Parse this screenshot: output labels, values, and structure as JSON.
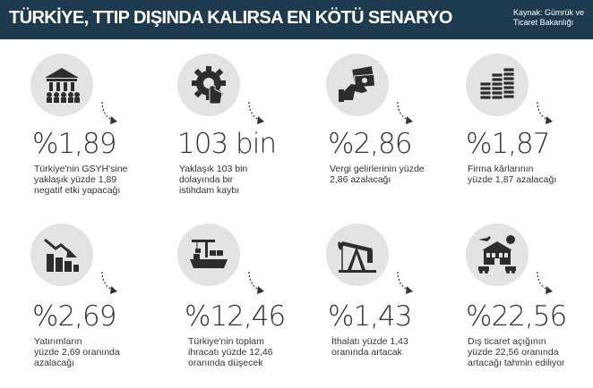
{
  "header": {
    "title": "TÜRKİYE, TTIP DIŞINDA KALIRSA EN KÖTÜ SENARYO",
    "source_line1": "Kaynak: Gümrük ve",
    "source_line2": "Ticaret Bakanlığı"
  },
  "items": [
    {
      "icon": "government-building-icon",
      "value": "%1,89",
      "desc": [
        "Türkiye'nin GSYH'sine",
        "yaklaşık yüzde 1,89",
        "negatif etki yapacağı"
      ]
    },
    {
      "icon": "gear-hand-icon",
      "value": "103 bin",
      "desc": [
        "Yaklaşık 103 bin",
        "dolayında bir",
        "istihdam kaybı"
      ]
    },
    {
      "icon": "money-hand-icon",
      "value": "%2,86",
      "desc": [
        "Vergi gelirlerinin yüzde",
        "2,86 azalacağı"
      ]
    },
    {
      "icon": "coin-stacks-icon",
      "value": "%1,87",
      "desc": [
        "Firma kârlarının",
        "yüzde 1,87 azalacağı"
      ]
    },
    {
      "icon": "declining-chart-icon",
      "value": "%2,69",
      "desc": [
        "Yatırımların",
        "yüzde 2,69 oranında",
        "azalacağı"
      ]
    },
    {
      "icon": "cargo-ship-icon",
      "value": "%12,46",
      "desc": [
        "Türkiye'nin toplam",
        "ihracatı yüzde 12,46",
        "oranında düşecek"
      ]
    },
    {
      "icon": "oil-pump-icon",
      "value": "%1,43",
      "desc": [
        "İthalatı yüzde 1,43",
        "oranında artacak"
      ]
    },
    {
      "icon": "trade-building-icon",
      "value": "%22,56",
      "desc": [
        "Dış ticaret açığının",
        "yüzde 22,56 oranında",
        "artacağı tahmin ediliyor"
      ]
    }
  ]
}
